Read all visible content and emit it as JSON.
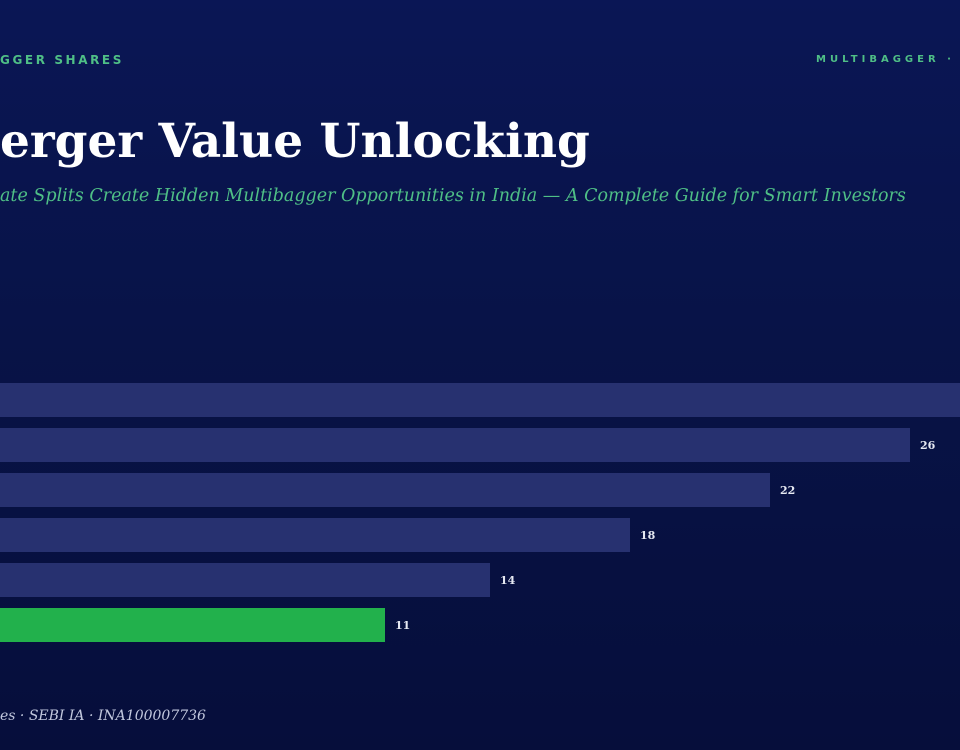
{
  "header": {
    "kicker_left": "GGER SHARES",
    "kicker_right": "MULTIBAGGER · D",
    "title": "erger Value Unlocking",
    "subtitle": "ate Splits Create Hidden Multibagger Opportunities in India — A Complete Guide for Smart Investors"
  },
  "footer": {
    "text": "es · SEBI IA · INA100007736"
  },
  "colors": {
    "bar": "#273170",
    "highlight": "#22b14c",
    "label": "#e6e9f2"
  },
  "chart_data": {
    "type": "bar",
    "orientation": "horizontal",
    "values": [
      null,
      26,
      22,
      18,
      14,
      11
    ],
    "labels": [
      "",
      "26",
      "22",
      "18",
      "14",
      "11"
    ],
    "highlight_index": 5,
    "grid": false
  }
}
